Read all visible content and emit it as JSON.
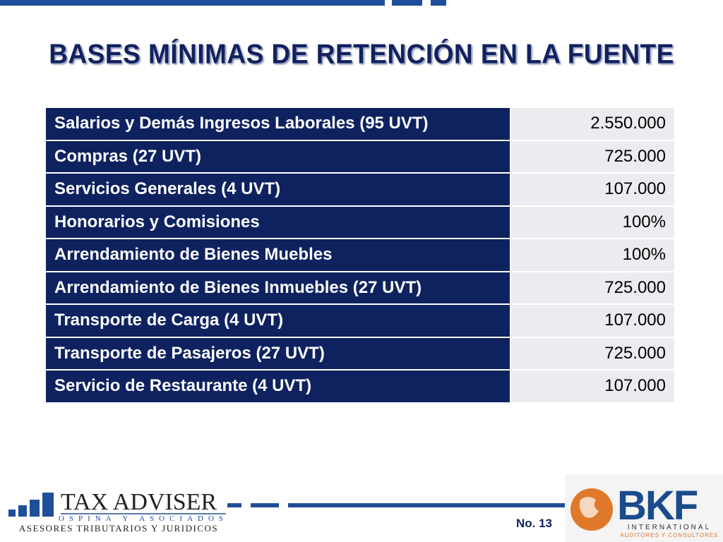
{
  "title": "BASES MÍNIMAS DE RETENCIÓN EN LA FUENTE",
  "table": {
    "rows": [
      [
        "Salarios y Demás Ingresos Laborales (95 UVT)",
        "2.550.000"
      ],
      [
        "Compras (27 UVT)",
        "725.000"
      ],
      [
        "Servicios Generales (4 UVT)",
        "107.000"
      ],
      [
        "Honorarios y Comisiones",
        "100%"
      ],
      [
        "Arrendamiento de Bienes Muebles",
        "100%"
      ],
      [
        "Arrendamiento de Bienes Inmuebles (27 UVT)",
        "725.000"
      ],
      [
        "Transporte de Carga (4 UVT)",
        "107.000"
      ],
      [
        "Transporte de Pasajeros (27 UVT)",
        "725.000"
      ],
      [
        "Servicio de Restaurante (4 UVT)",
        "107.000"
      ]
    ]
  },
  "footer": {
    "left_logo": {
      "name": "TAX ADVISER",
      "sub": "OSPINA Y ASOCIADOS",
      "tagline": "ASESORES TRIBUTARIOS Y JURIDICOS"
    },
    "page_number": "No. 13",
    "right_logo": {
      "name": "BKF",
      "sub": "INTERNATIONAL",
      "tagline": "AUDITORES Y CONSULTORES"
    }
  }
}
